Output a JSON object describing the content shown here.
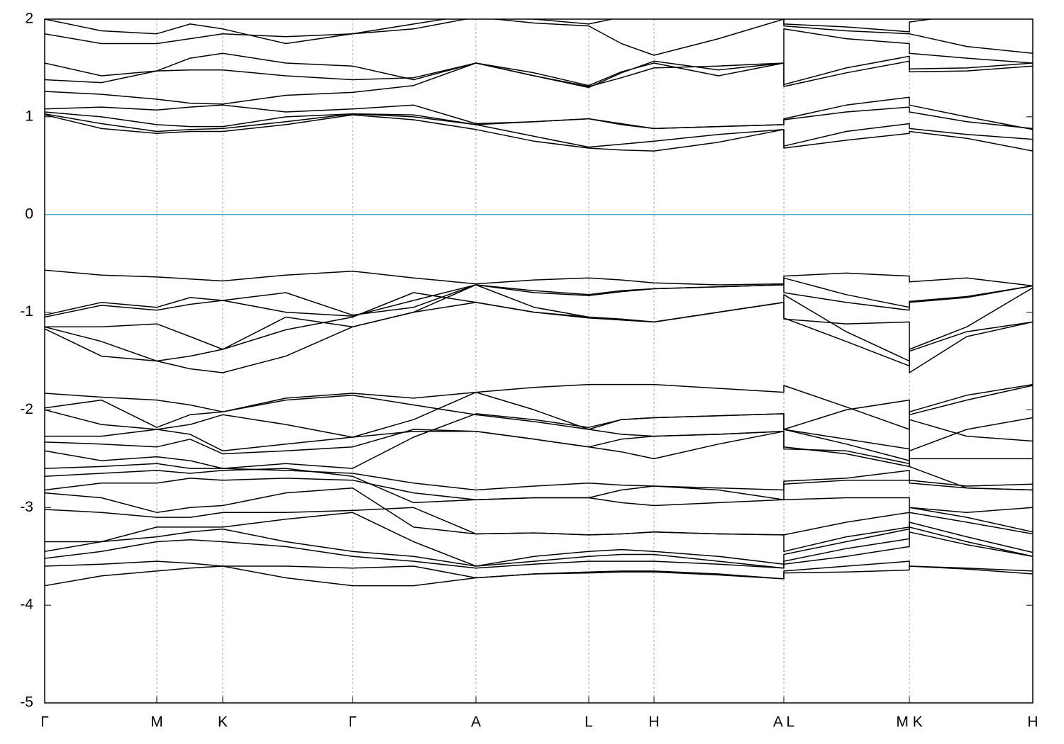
{
  "chart_data": {
    "type": "line",
    "x": [
      0,
      0.08,
      0.158,
      0.205,
      0.251,
      0.34,
      0.434,
      0.52,
      0.608,
      0.69,
      0.767,
      0.813,
      0.859,
      0.95,
      1.042,
      1.042,
      1.13,
      1.219,
      1.219,
      1.3,
      1.393
    ],
    "xlim": [
      0,
      1.393
    ],
    "xticks": [
      {
        "value": 0,
        "label": "Γ"
      },
      {
        "value": 0.158,
        "label": "M"
      },
      {
        "value": 0.251,
        "label": "K"
      },
      {
        "value": 0.434,
        "label": "Γ"
      },
      {
        "value": 0.608,
        "label": "A"
      },
      {
        "value": 0.767,
        "label": "L"
      },
      {
        "value": 0.859,
        "label": "H"
      },
      {
        "value": 1.042,
        "label": "A L"
      },
      {
        "value": 1.219,
        "label": "M K"
      },
      {
        "value": 1.393,
        "label": "H"
      }
    ],
    "ylim": [
      -5,
      2
    ],
    "yticks": [
      -5,
      -4,
      -3,
      -2,
      -1,
      0,
      1,
      2
    ],
    "grid": "x",
    "line_color": "#000000",
    "fermi_level": 0,
    "fermi_color": "#4bacc6",
    "series": [
      {
        "values": [
          1.02,
          0.88,
          0.83,
          0.85,
          0.85,
          0.92,
          1.02,
          0.97,
          0.87,
          0.75,
          0.68,
          0.66,
          0.65,
          0.74,
          0.87,
          0.68,
          0.76,
          0.83,
          0.85,
          0.78,
          0.65
        ]
      },
      {
        "values": [
          1.03,
          0.93,
          0.85,
          0.87,
          0.88,
          0.95,
          1.03,
          1.0,
          0.92,
          0.8,
          0.69,
          0.72,
          0.75,
          0.82,
          0.87,
          0.7,
          0.85,
          0.93,
          0.88,
          0.82,
          0.77
        ]
      },
      {
        "values": [
          1.05,
          1.0,
          0.92,
          0.9,
          0.9,
          1.0,
          1.03,
          1.02,
          0.92,
          0.95,
          0.98,
          0.92,
          0.88,
          0.9,
          0.92,
          0.97,
          1.05,
          1.1,
          1.05,
          0.95,
          0.88
        ]
      },
      {
        "values": [
          1.08,
          1.1,
          1.07,
          1.1,
          1.12,
          1.05,
          1.08,
          1.12,
          0.93,
          0.95,
          0.98,
          0.93,
          0.88,
          0.9,
          0.92,
          0.98,
          1.12,
          1.2,
          1.12,
          1.0,
          0.87
        ]
      },
      {
        "values": [
          1.26,
          1.23,
          1.18,
          1.14,
          1.13,
          1.22,
          1.25,
          1.32,
          1.55,
          1.42,
          1.31,
          1.4,
          1.5,
          1.52,
          1.55,
          1.31,
          1.45,
          1.57,
          1.46,
          1.47,
          1.52
        ]
      },
      {
        "values": [
          1.38,
          1.35,
          1.47,
          1.48,
          1.48,
          1.42,
          1.38,
          1.4,
          1.55,
          1.42,
          1.3,
          1.45,
          1.57,
          1.48,
          1.55,
          1.33,
          1.5,
          1.62,
          1.49,
          1.5,
          1.55
        ]
      },
      {
        "values": [
          1.55,
          1.42,
          1.47,
          1.6,
          1.65,
          1.55,
          1.52,
          1.38,
          1.55,
          1.45,
          1.32,
          1.46,
          1.55,
          1.42,
          1.55,
          1.9,
          1.8,
          1.75,
          1.65,
          1.6,
          1.55
        ]
      },
      {
        "values": [
          1.85,
          1.75,
          1.75,
          1.8,
          1.85,
          1.82,
          1.85,
          1.9,
          2.02,
          1.96,
          1.93,
          1.75,
          1.63,
          1.8,
          2.0,
          1.93,
          1.88,
          1.85,
          1.85,
          1.72,
          1.65
        ]
      },
      {
        "values": [
          2.0,
          1.88,
          1.85,
          1.95,
          1.9,
          1.75,
          1.85,
          1.95,
          2.05,
          2.0,
          1.95,
          2.02,
          2.05,
          2.05,
          2.05,
          1.95,
          1.92,
          1.87,
          1.97,
          2.05,
          2.05
        ]
      },
      {
        "values": [
          -0.57,
          -0.62,
          -0.64,
          -0.66,
          -0.68,
          -0.62,
          -0.58,
          -0.65,
          -0.71,
          -0.67,
          -0.65,
          -0.67,
          -0.7,
          -0.72,
          -0.71,
          -0.63,
          -0.6,
          -0.63,
          -0.69,
          -0.65,
          -0.73
        ]
      },
      {
        "values": [
          -1.03,
          -0.9,
          -0.95,
          -0.85,
          -0.88,
          -0.8,
          -1.03,
          -0.95,
          -0.72,
          -0.78,
          -0.82,
          -0.78,
          -0.76,
          -0.74,
          -0.72,
          -0.65,
          -0.82,
          -0.95,
          -0.9,
          -0.85,
          -0.73
        ]
      },
      {
        "values": [
          -1.05,
          -0.93,
          -0.98,
          -0.92,
          -0.88,
          -1.0,
          -1.04,
          -0.88,
          -0.72,
          -0.8,
          -0.83,
          -0.79,
          -0.76,
          -0.74,
          -0.72,
          -0.8,
          -0.9,
          -0.98,
          -0.89,
          -0.84,
          -0.73
        ]
      },
      {
        "values": [
          -1.15,
          -1.15,
          -1.12,
          -1.25,
          -1.38,
          -1.18,
          -1.05,
          -0.8,
          -0.9,
          -1.0,
          -1.05,
          -1.07,
          -1.1,
          -1.0,
          -0.9,
          -0.82,
          -1.2,
          -1.5,
          -1.38,
          -1.15,
          -0.75
        ]
      },
      {
        "values": [
          -1.15,
          -1.3,
          -1.5,
          -1.45,
          -1.38,
          -1.05,
          -1.15,
          -1.0,
          -0.72,
          -0.95,
          -1.05,
          -1.08,
          -1.1,
          -1.0,
          -0.9,
          -1.06,
          -1.3,
          -1.55,
          -1.4,
          -1.2,
          -1.1
        ]
      },
      {
        "values": [
          -1.17,
          -1.45,
          -1.5,
          -1.58,
          -1.62,
          -1.45,
          -1.15,
          -1.0,
          -0.9,
          -1.0,
          -1.06,
          -1.08,
          -1.1,
          -1.0,
          -0.9,
          -1.07,
          -1.12,
          -1.1,
          -1.62,
          -1.25,
          -1.1
        ]
      },
      {
        "values": [
          -1.83,
          -1.87,
          -1.9,
          -1.95,
          -2.02,
          -1.88,
          -1.83,
          -1.88,
          -1.82,
          -1.77,
          -1.74,
          -1.74,
          -1.74,
          -1.78,
          -1.82,
          -1.75,
          -1.97,
          -2.2,
          -2.02,
          -1.85,
          -1.74
        ]
      },
      {
        "values": [
          -1.98,
          -1.9,
          -2.18,
          -2.05,
          -2.02,
          -1.9,
          -1.85,
          -1.95,
          -2.05,
          -2.12,
          -2.2,
          -2.1,
          -2.08,
          -2.06,
          -2.04,
          -2.2,
          -2.0,
          -1.9,
          -2.05,
          -1.9,
          -1.75
        ]
      },
      {
        "values": [
          -2.0,
          -2.15,
          -2.2,
          -2.15,
          -2.05,
          -2.15,
          -2.28,
          -2.1,
          -1.82,
          -2.0,
          -2.2,
          -2.25,
          -2.27,
          -2.25,
          -2.22,
          -2.2,
          -2.35,
          -2.52,
          -2.42,
          -2.2,
          -2.08
        ]
      },
      {
        "values": [
          -2.27,
          -2.27,
          -2.2,
          -2.25,
          -2.42,
          -2.35,
          -2.28,
          -2.22,
          -2.22,
          -2.3,
          -2.38,
          -2.43,
          -2.5,
          -2.35,
          -2.22,
          -2.38,
          -2.45,
          -2.58,
          -2.1,
          -2.27,
          -2.32
        ]
      },
      {
        "values": [
          -2.33,
          -2.35,
          -2.38,
          -2.3,
          -2.45,
          -2.42,
          -2.38,
          -2.2,
          -2.22,
          -2.3,
          -2.38,
          -2.3,
          -2.27,
          -2.25,
          -2.22,
          -2.4,
          -2.42,
          -2.55,
          -2.5,
          -2.5,
          -2.5
        ]
      },
      {
        "values": [
          -2.42,
          -2.52,
          -2.48,
          -2.52,
          -2.6,
          -2.55,
          -2.6,
          -2.28,
          -2.04,
          -2.1,
          -2.18,
          -2.1,
          -2.08,
          -2.06,
          -2.04,
          -2.2,
          -2.3,
          -2.4,
          -2.58,
          -2.8,
          -2.82
        ]
      },
      {
        "values": [
          -2.6,
          -2.58,
          -2.55,
          -2.6,
          -2.6,
          -2.62,
          -2.65,
          -2.75,
          -2.82,
          -2.78,
          -2.75,
          -2.77,
          -2.78,
          -2.8,
          -2.82,
          -2.73,
          -2.7,
          -2.62,
          -2.72,
          -2.78,
          -2.76
        ]
      },
      {
        "values": [
          -2.68,
          -2.65,
          -2.62,
          -2.65,
          -2.62,
          -2.6,
          -2.68,
          -2.95,
          -2.92,
          -2.9,
          -2.9,
          -2.82,
          -2.78,
          -2.82,
          -2.92,
          -2.76,
          -2.72,
          -2.72,
          -2.75,
          -2.8,
          -2.82
        ]
      },
      {
        "values": [
          -2.82,
          -2.75,
          -2.75,
          -2.7,
          -2.72,
          -2.7,
          -2.72,
          -2.85,
          -2.92,
          -2.9,
          -2.9,
          -2.95,
          -2.98,
          -2.95,
          -2.92,
          -2.92,
          -2.9,
          -2.9,
          -3.0,
          -3.05,
          -3.0
        ]
      },
      {
        "values": [
          -2.85,
          -2.9,
          -3.05,
          -3.0,
          -2.98,
          -2.85,
          -2.8,
          -3.2,
          -3.27,
          -3.26,
          -3.28,
          -3.27,
          -3.25,
          -3.27,
          -3.28,
          -3.28,
          -3.15,
          -3.05,
          -3.0,
          -3.1,
          -3.25
        ]
      },
      {
        "values": [
          -3.02,
          -3.05,
          -3.1,
          -3.1,
          -3.05,
          -3.05,
          -3.03,
          -3.0,
          -3.27,
          -3.26,
          -3.28,
          -3.27,
          -3.25,
          -3.27,
          -3.28,
          -3.45,
          -3.3,
          -3.2,
          -3.05,
          -3.15,
          -3.27
        ]
      },
      {
        "values": [
          -3.35,
          -3.35,
          -3.2,
          -3.2,
          -3.2,
          -3.12,
          -3.05,
          -3.35,
          -3.6,
          -3.5,
          -3.45,
          -3.43,
          -3.45,
          -3.5,
          -3.58,
          -3.48,
          -3.35,
          -3.22,
          -3.15,
          -3.3,
          -3.46
        ]
      },
      {
        "values": [
          -3.45,
          -3.35,
          -3.3,
          -3.25,
          -3.22,
          -3.35,
          -3.45,
          -3.5,
          -3.6,
          -3.55,
          -3.5,
          -3.48,
          -3.48,
          -3.55,
          -3.62,
          -3.55,
          -3.42,
          -3.32,
          -3.2,
          -3.35,
          -3.5
        ]
      },
      {
        "values": [
          -3.52,
          -3.45,
          -3.35,
          -3.33,
          -3.35,
          -3.4,
          -3.5,
          -3.55,
          -3.62,
          -3.58,
          -3.55,
          -3.55,
          -3.55,
          -3.58,
          -3.62,
          -3.58,
          -3.5,
          -3.4,
          -3.25,
          -3.38,
          -3.5
        ]
      },
      {
        "values": [
          -3.6,
          -3.58,
          -3.55,
          -3.57,
          -3.6,
          -3.6,
          -3.62,
          -3.6,
          -3.72,
          -3.68,
          -3.66,
          -3.65,
          -3.65,
          -3.68,
          -3.73,
          -3.65,
          -3.6,
          -3.55,
          -3.6,
          -3.62,
          -3.65
        ]
      },
      {
        "values": [
          -3.8,
          -3.7,
          -3.65,
          -3.62,
          -3.6,
          -3.72,
          -3.8,
          -3.8,
          -3.72,
          -3.68,
          -3.67,
          -3.66,
          -3.66,
          -3.69,
          -3.73,
          -3.67,
          -3.66,
          -3.64,
          -3.6,
          -3.63,
          -3.68
        ]
      }
    ]
  }
}
